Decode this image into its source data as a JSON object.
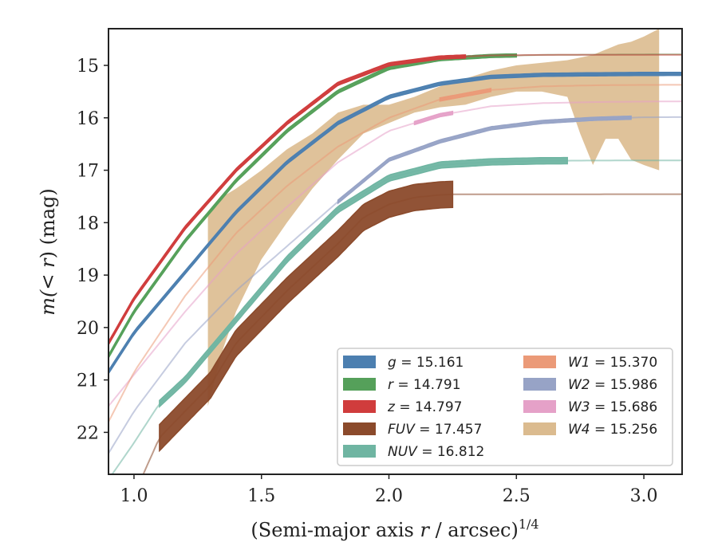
{
  "chart_data": {
    "type": "line",
    "xlabel": "(Semi-major axis r / arcsec)^1/4",
    "xlabel_main": "(Semi-major axis ",
    "xlabel_var": "r",
    "xlabel_tail": " / arcsec)",
    "xlabel_sup": "1/4",
    "ylabel": "m(<r) (mag)",
    "ylabel_pre": "m(",
    "ylabel_var": "< r",
    "ylabel_post": ") (mag)",
    "xlim": [
      0.9,
      3.15
    ],
    "ylim": [
      22.8,
      14.3
    ],
    "y_inverted": true,
    "xticks": [
      1.0,
      1.5,
      2.0,
      2.5,
      3.0
    ],
    "xtick_labels": [
      "1.0",
      "1.5",
      "2.0",
      "2.5",
      "3.0"
    ],
    "yticks": [
      15,
      16,
      17,
      18,
      19,
      20,
      21,
      22
    ],
    "ytick_labels": [
      "15",
      "16",
      "17",
      "18",
      "19",
      "20",
      "21",
      "22"
    ],
    "grid": false,
    "legend_position": "lower-right",
    "series": [
      {
        "name": "g",
        "label": "g = 15.161",
        "color": "#4c7fb0",
        "band_width": 0.06,
        "faint_x": [
          0.9,
          3.15
        ],
        "solid_x": [
          0.9,
          3.15
        ],
        "x": [
          0.9,
          1.0,
          1.2,
          1.4,
          1.6,
          1.8,
          2.0,
          2.2,
          2.4,
          2.6,
          2.8,
          3.0,
          3.15
        ],
        "y": [
          20.85,
          20.1,
          18.95,
          17.8,
          16.85,
          16.1,
          15.6,
          15.35,
          15.22,
          15.18,
          15.17,
          15.163,
          15.161
        ]
      },
      {
        "name": "r",
        "label": "r = 14.791",
        "color": "#55a05a",
        "band_width": 0.06,
        "faint_x": [
          0.9,
          3.15
        ],
        "solid_x": [
          0.9,
          2.5
        ],
        "x": [
          0.9,
          1.0,
          1.2,
          1.4,
          1.6,
          1.8,
          2.0,
          2.2,
          2.4,
          2.6,
          2.8,
          3.0,
          3.15
        ],
        "y": [
          20.55,
          19.7,
          18.35,
          17.2,
          16.25,
          15.5,
          15.05,
          14.88,
          14.82,
          14.8,
          14.795,
          14.792,
          14.791
        ]
      },
      {
        "name": "z",
        "label": "z = 14.797",
        "color": "#d03c3c",
        "band_width": 0.06,
        "faint_x": [
          0.9,
          3.15
        ],
        "solid_x": [
          0.9,
          2.3
        ],
        "x": [
          0.9,
          1.0,
          1.2,
          1.4,
          1.6,
          1.8,
          2.0,
          2.2,
          2.4,
          2.6,
          2.8,
          3.0,
          3.15
        ],
        "y": [
          20.3,
          19.45,
          18.1,
          17.0,
          16.1,
          15.35,
          14.98,
          14.85,
          14.81,
          14.8,
          14.798,
          14.797,
          14.797
        ]
      },
      {
        "name": "FUV",
        "label": "FUV = 17.457",
        "color": "#8b4a2b",
        "band_width": 0.5,
        "faint_x": [
          1.0,
          3.15
        ],
        "solid_x": [
          1.1,
          2.25
        ],
        "x": [
          1.0,
          1.1,
          1.3,
          1.4,
          1.5,
          1.6,
          1.7,
          1.8,
          1.9,
          2.0,
          2.1,
          2.2,
          2.25,
          2.5,
          3.15
        ],
        "y": [
          23.2,
          22.1,
          21.1,
          20.3,
          19.8,
          19.3,
          18.85,
          18.4,
          17.9,
          17.65,
          17.52,
          17.47,
          17.46,
          17.458,
          17.457
        ]
      },
      {
        "name": "NUV",
        "label": "NUV = 16.812",
        "color": "#6fb5a2",
        "band_width": 0.12,
        "faint_x": [
          0.9,
          3.15
        ],
        "solid_x": [
          1.1,
          2.7
        ],
        "x": [
          0.9,
          1.0,
          1.1,
          1.2,
          1.4,
          1.6,
          1.8,
          2.0,
          2.2,
          2.4,
          2.6,
          2.8,
          3.0,
          3.15
        ],
        "y": [
          22.9,
          22.2,
          21.45,
          21.0,
          19.85,
          18.7,
          17.75,
          17.15,
          16.9,
          16.84,
          16.82,
          16.815,
          16.813,
          16.812
        ]
      },
      {
        "name": "W1",
        "label": "W1 = 15.370",
        "color": "#eb9a78",
        "band_width": 0.06,
        "faint_x": [
          0.9,
          3.15
        ],
        "solid_x": [
          2.2,
          2.4
        ],
        "x": [
          0.9,
          1.0,
          1.2,
          1.4,
          1.6,
          1.8,
          2.0,
          2.2,
          2.4,
          2.6,
          2.8,
          3.0,
          3.15
        ],
        "y": [
          21.8,
          20.85,
          19.4,
          18.2,
          17.3,
          16.55,
          16.0,
          15.65,
          15.47,
          15.4,
          15.38,
          15.372,
          15.37
        ]
      },
      {
        "name": "W2",
        "label": "W2 = 15.986",
        "color": "#97a3c6",
        "band_width": 0.06,
        "faint_x": [
          0.9,
          3.15
        ],
        "solid_x": [
          1.8,
          2.95
        ],
        "x": [
          0.9,
          1.0,
          1.2,
          1.4,
          1.6,
          1.8,
          2.0,
          2.2,
          2.4,
          2.6,
          2.8,
          3.0,
          3.15
        ],
        "y": [
          22.4,
          21.6,
          20.3,
          19.3,
          18.45,
          17.6,
          16.8,
          16.45,
          16.2,
          16.08,
          16.02,
          15.99,
          15.986
        ]
      },
      {
        "name": "W3",
        "label": "W3 = 15.686",
        "color": "#e5a1c8",
        "band_width": 0.06,
        "faint_x": [
          0.9,
          3.15
        ],
        "solid_x": [
          2.1,
          2.25
        ],
        "x": [
          0.9,
          1.0,
          1.2,
          1.4,
          1.6,
          1.8,
          2.0,
          2.2,
          2.4,
          2.6,
          2.8,
          3.0,
          3.15
        ],
        "y": [
          21.5,
          20.9,
          19.7,
          18.6,
          17.7,
          16.85,
          16.25,
          15.95,
          15.78,
          15.72,
          15.7,
          15.69,
          15.686
        ]
      },
      {
        "name": "W4",
        "label": "W4 = 15.256",
        "color": "#dbbb8f",
        "band_width": 0,
        "x": [
          1.29,
          1.35,
          1.4,
          1.5,
          1.6,
          1.7,
          1.8,
          1.9,
          2.0,
          2.1,
          2.2,
          2.3,
          2.4,
          2.5,
          2.6,
          2.7,
          2.75,
          2.8,
          2.85,
          2.9,
          2.95,
          3.0,
          3.06
        ],
        "y_upper": [
          17.8,
          17.5,
          17.35,
          17.0,
          16.6,
          16.3,
          15.9,
          15.75,
          15.75,
          15.6,
          15.4,
          15.25,
          15.1,
          15.0,
          14.95,
          14.9,
          14.85,
          14.8,
          14.7,
          14.6,
          14.55,
          14.45,
          14.3
        ],
        "y_lower": [
          21.5,
          20.4,
          19.7,
          18.7,
          18.0,
          17.35,
          16.8,
          16.3,
          16.1,
          15.9,
          15.8,
          15.75,
          15.6,
          15.5,
          15.5,
          15.6,
          16.3,
          16.9,
          16.4,
          16.4,
          16.8,
          16.9,
          17.0
        ]
      }
    ]
  }
}
